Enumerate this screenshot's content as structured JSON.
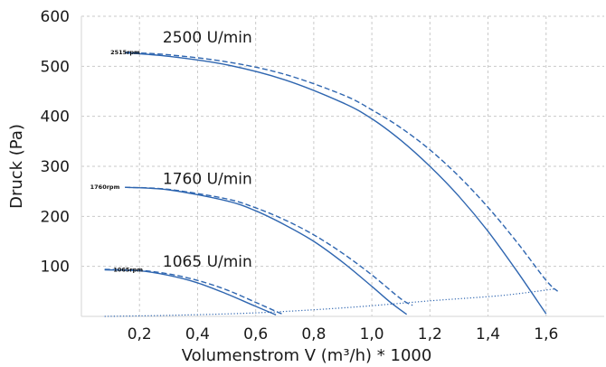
{
  "chart_data": {
    "type": "line",
    "title": "",
    "xlabel": "Volumenstrom V (m³/h) * 1000",
    "ylabel": "Druck (Pa)",
    "xlim": [
      0,
      1.8
    ],
    "ylim": [
      0,
      600
    ],
    "x_ticks": [
      "0,2",
      "0,4",
      "0,6",
      "0,8",
      "1,0",
      "1,2",
      "1,4",
      "1,6"
    ],
    "y_ticks": [
      "100",
      "200",
      "300",
      "400",
      "500",
      "600"
    ],
    "grid": true,
    "colors": {
      "curve": "#2f66b0",
      "text": "#1a1a1a",
      "grid": "#c9c9c9"
    },
    "curve_labels": [
      {
        "text": "2500 U/min",
        "x": 0.28,
        "y": 548
      },
      {
        "text": "1760 U/min",
        "x": 0.28,
        "y": 265
      },
      {
        "text": "1065 U/min",
        "x": 0.28,
        "y": 99
      }
    ],
    "rpm_tags": [
      {
        "text": "2515rpm",
        "x": 0.1,
        "y": 528
      },
      {
        "text": "1760rpm",
        "x": 0.03,
        "y": 258
      },
      {
        "text": "1065rpm",
        "x": 0.11,
        "y": 93
      }
    ],
    "series": [
      {
        "style": "solid",
        "x": [
          0.15,
          0.3,
          0.5,
          0.7,
          0.9,
          1.0,
          1.1,
          1.2,
          1.3,
          1.4,
          1.5,
          1.6
        ],
        "y": [
          527,
          520,
          503,
          473,
          427,
          395,
          352,
          300,
          240,
          170,
          90,
          5
        ]
      },
      {
        "style": "dashed",
        "x": [
          0.15,
          0.3,
          0.5,
          0.7,
          0.9,
          1.0,
          1.1,
          1.2,
          1.3,
          1.4,
          1.5,
          1.6,
          1.64
        ],
        "y": [
          528,
          523,
          509,
          484,
          443,
          413,
          377,
          333,
          280,
          218,
          148,
          72,
          50
        ]
      },
      {
        "style": "solid",
        "x": [
          0.15,
          0.3,
          0.5,
          0.6,
          0.7,
          0.8,
          0.9,
          1.0,
          1.06,
          1.12
        ],
        "y": [
          258,
          253,
          231,
          211,
          183,
          150,
          108,
          60,
          30,
          4
        ]
      },
      {
        "style": "dashed",
        "x": [
          0.15,
          0.3,
          0.5,
          0.6,
          0.7,
          0.8,
          0.9,
          1.0,
          1.1,
          1.14
        ],
        "y": [
          258,
          254,
          235,
          217,
          193,
          163,
          126,
          83,
          35,
          22
        ]
      },
      {
        "style": "solid",
        "x": [
          0.08,
          0.2,
          0.3,
          0.4,
          0.5,
          0.6,
          0.67
        ],
        "y": [
          93,
          91,
          82,
          67,
          45,
          20,
          3
        ]
      },
      {
        "style": "dashed",
        "x": [
          0.08,
          0.2,
          0.3,
          0.4,
          0.5,
          0.6,
          0.67,
          0.69
        ],
        "y": [
          94,
          92,
          85,
          72,
          53,
          28,
          10,
          5
        ]
      },
      {
        "style": "dotted",
        "x": [
          0.08,
          0.3,
          0.6,
          0.9,
          1.2,
          1.45,
          1.63
        ],
        "y": [
          0,
          2,
          7,
          17,
          31,
          42,
          55
        ]
      }
    ]
  }
}
